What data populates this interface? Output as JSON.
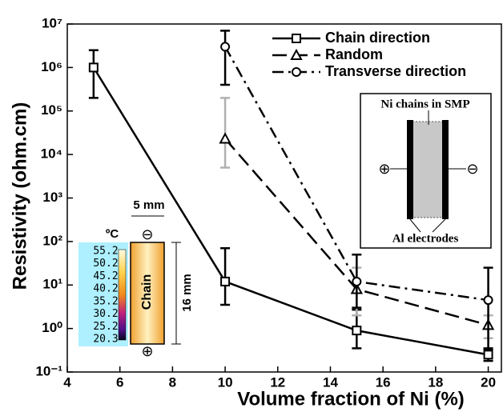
{
  "chart_data": {
    "type": "line",
    "xlabel": "Volume fraction of Ni (%)",
    "ylabel": "Resistivity (ohm.cm)",
    "log_y": true,
    "xlim": [
      4,
      20.5
    ],
    "ylim": [
      0.1,
      10000000
    ],
    "xticks": [
      4,
      6,
      8,
      10,
      12,
      14,
      16,
      18,
      20
    ],
    "yticks": [
      {
        "value": 0.1,
        "label": "10⁻¹"
      },
      {
        "value": 1,
        "label": "10⁰"
      },
      {
        "value": 10,
        "label": "10¹"
      },
      {
        "value": 100,
        "label": "10²"
      },
      {
        "value": 1000,
        "label": "10³"
      },
      {
        "value": 10000,
        "label": "10⁴"
      },
      {
        "value": 100000,
        "label": "10⁵"
      },
      {
        "value": 1000000,
        "label": "10⁶"
      },
      {
        "value": 10000000,
        "label": "10⁷"
      }
    ],
    "legend": "upper right",
    "series": [
      {
        "name": "Chain direction",
        "color": "#000000",
        "marker": "square",
        "dash": "solid",
        "error_color": "#000000",
        "x": [
          5,
          10,
          15,
          20
        ],
        "values": [
          1000000,
          12,
          0.9,
          0.25
        ],
        "lower": [
          200000,
          3.5,
          0.35,
          0.18
        ],
        "upper": [
          2500000,
          70,
          2.7,
          0.33
        ]
      },
      {
        "name": "Random",
        "color": "#000000",
        "marker": "triangle",
        "dash": "dashed",
        "error_color": "#b0b0b0",
        "x": [
          10,
          15,
          20
        ],
        "values": [
          23000,
          8,
          1.2
        ],
        "lower": [
          5000,
          2,
          0.6
        ],
        "upper": [
          200000,
          25,
          2
        ]
      },
      {
        "name": "Transverse direction",
        "color": "#000000",
        "marker": "circle",
        "dash": "dashdot",
        "error_color": "#000000",
        "x": [
          10,
          15,
          20
        ],
        "values": [
          3000000,
          12,
          4.5
        ],
        "lower": [
          400000,
          3,
          0.35
        ],
        "upper": [
          7000000,
          50,
          25
        ]
      }
    ]
  },
  "insets": {
    "schematic": {
      "title": "Ni chains in SMP",
      "electrodes": "Al electrodes",
      "plus": "⊕",
      "minus": "⊖"
    },
    "thermal": {
      "width": "5 mm",
      "height": "16 mm",
      "unit": "ºC",
      "sample": "Chain",
      "plus": "⊕",
      "minus": "⊖",
      "scale_labels": [
        "55.2",
        "50.2",
        "45.2",
        "40.2",
        "35.2",
        "30.2",
        "25.2",
        "20.3"
      ]
    }
  }
}
